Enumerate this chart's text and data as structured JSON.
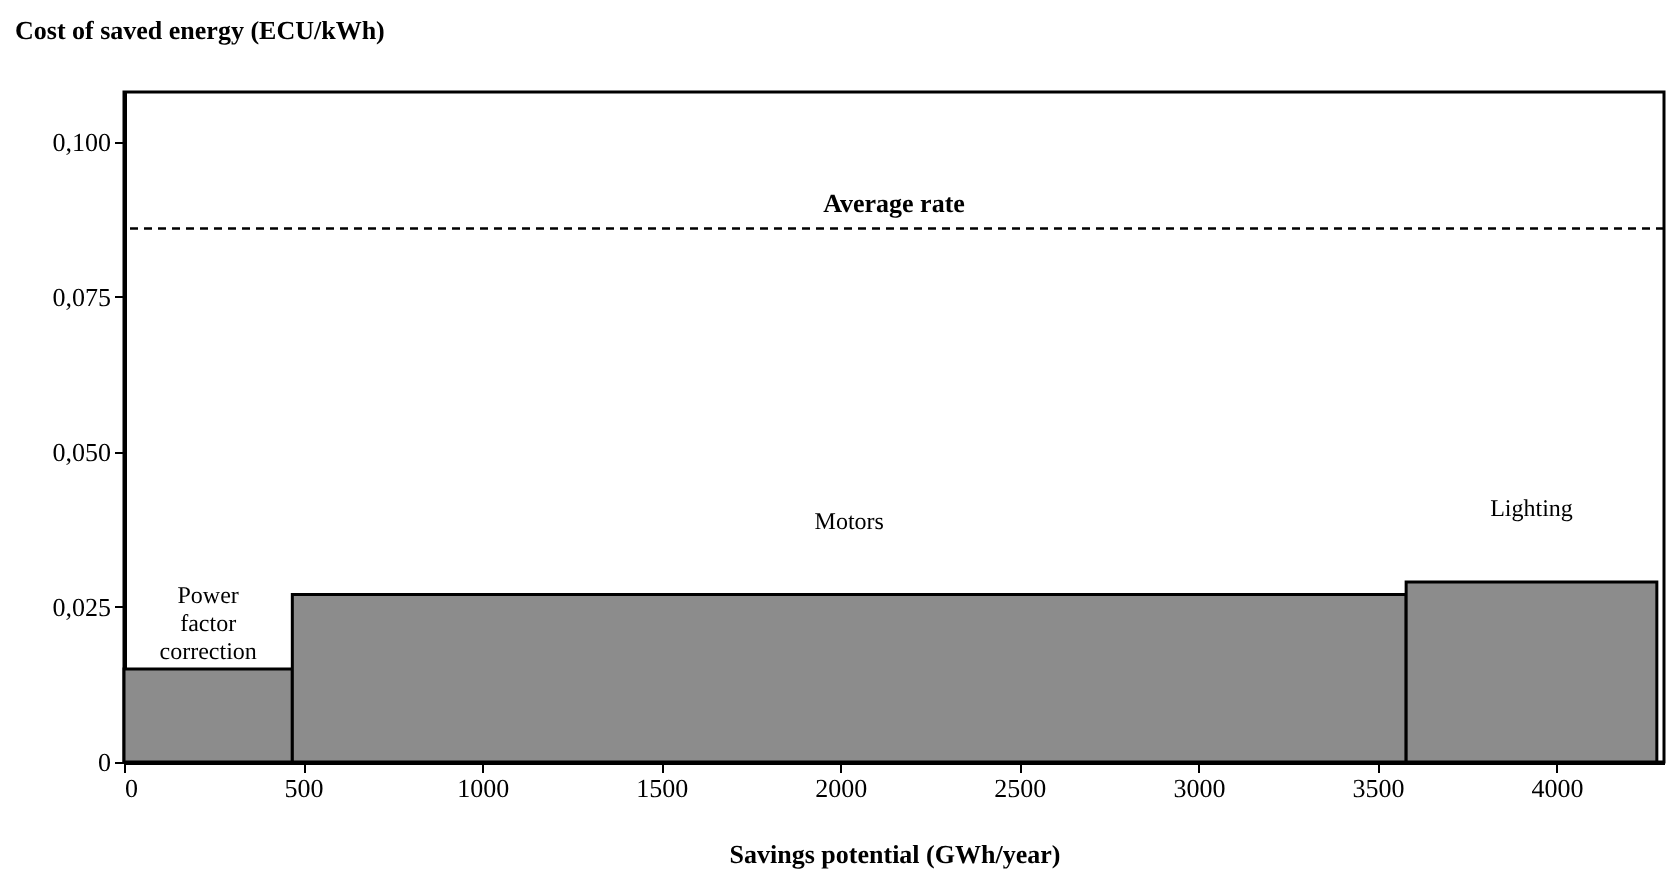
{
  "chart_data": {
    "type": "histogram",
    "xlabel": "Savings potential  (GWh/year)",
    "ylabel": "Cost of saved energy (ECU/kWh)",
    "bins": [
      0,
      470,
      3580,
      4280
    ],
    "values": [
      0.015,
      0.027,
      0.029
    ],
    "color": "#8c8c8c",
    "xlim": [
      0,
      4300
    ],
    "xticks": [
      0,
      500,
      1000,
      1500,
      2000,
      2500,
      3000,
      3500,
      4000
    ],
    "ylim": [
      0,
      0.108
    ],
    "yticks": [
      0,
      {
        "value": 0.025,
        "label": "0,025"
      },
      {
        "value": 0.05,
        "label": "0,050"
      },
      {
        "value": 0.075,
        "label": "0,075"
      },
      {
        "value": 0.1,
        "label": "0,100"
      }
    ],
    "ref_lines": [
      {
        "axis": "y",
        "value": 0.086,
        "label": "Average rate",
        "line_style": "dashed",
        "color": "#000000"
      }
    ],
    "annotations": [
      "Power factor correction",
      "Motors",
      "Lighting"
    ]
  }
}
